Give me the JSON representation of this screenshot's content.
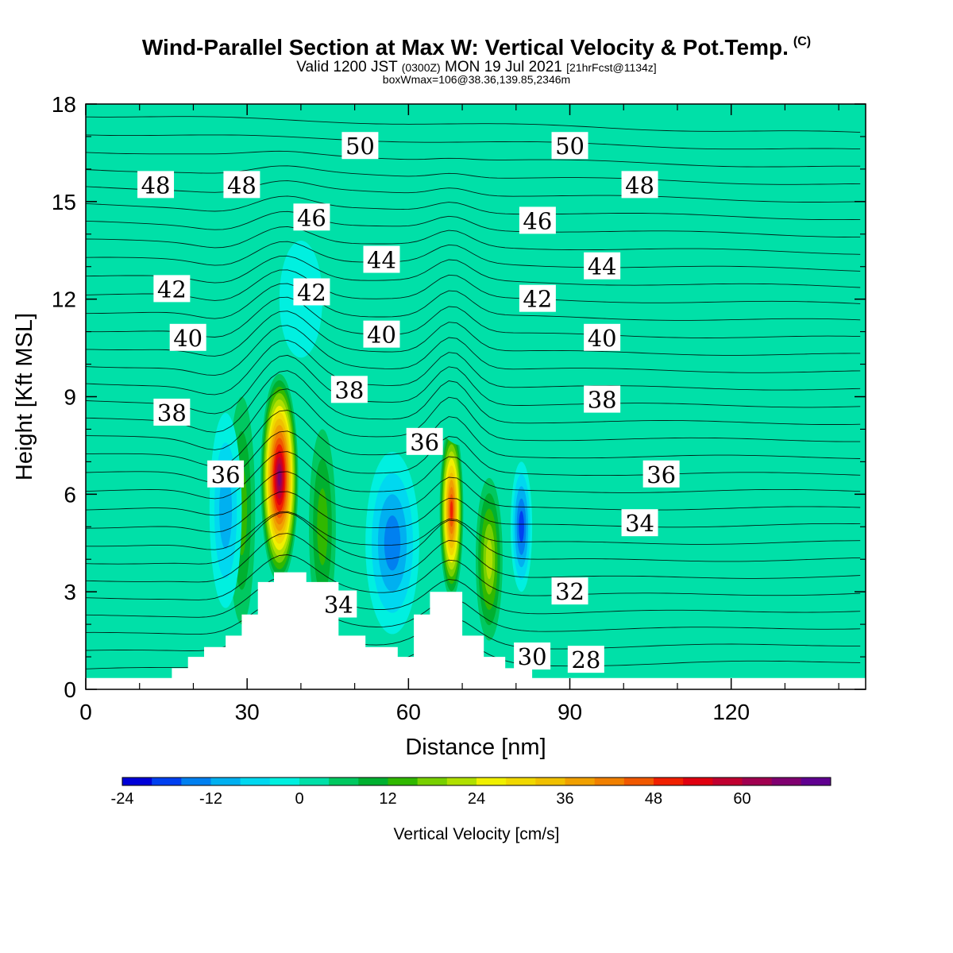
{
  "header": {
    "title": "Wind-Parallel Section at Max W: Vertical Velocity & Pot.Temp.",
    "title_mark": "(C)",
    "valid_prefix": "Valid 1200 JST",
    "valid_utc": "(0300Z)",
    "valid_date": "MON 19 Jul 2021",
    "forecast": "[21hrFcst@1134z]",
    "boxwmax": "boxWmax=106@38.36,139.85,2346m"
  },
  "chart_data": {
    "type": "heatmap",
    "xlabel": "Distance [nm]",
    "ylabel": "Height [Kft MSL]",
    "xlim": [
      0,
      145
    ],
    "ylim": [
      0,
      18
    ],
    "x_ticks": [
      "0",
      "30",
      "60",
      "90",
      "120"
    ],
    "y_ticks": [
      "0",
      "3",
      "6",
      "9",
      "12",
      "15",
      "18"
    ],
    "background_color": "#00e0a8",
    "colorbar": {
      "label": "Vertical Velocity [cm/s]",
      "tick_labels": [
        "-24",
        "-12",
        "0",
        "12",
        "24",
        "36",
        "48",
        "60"
      ],
      "levels": [
        -24,
        -20,
        -16,
        -12,
        -8,
        -4,
        0,
        4,
        8,
        12,
        16,
        20,
        24,
        28,
        32,
        36,
        40,
        44,
        48,
        52,
        56,
        60,
        64,
        68
      ],
      "colors": [
        "#0000d8",
        "#0040f0",
        "#0080f0",
        "#00b0f0",
        "#00d8f0",
        "#00f0e0",
        "#00e0a8",
        "#00c860",
        "#00b030",
        "#30b800",
        "#78d000",
        "#b0e000",
        "#f0f000",
        "#f0d800",
        "#f0c000",
        "#f0a000",
        "#f08000",
        "#f05800",
        "#f02000",
        "#e00010",
        "#c00030",
        "#a00050",
        "#800070",
        "#600090"
      ]
    },
    "velocity_features": [
      {
        "x": 36,
        "y": 6.5,
        "rx": 3.5,
        "ry": 3.2,
        "value": 66
      },
      {
        "x": 68,
        "y": 5.5,
        "rx": 2.2,
        "ry": 2.7,
        "value": 50
      },
      {
        "x": 29,
        "y": 5.5,
        "rx": 2.5,
        "ry": 3.5,
        "value": 14
      },
      {
        "x": 44,
        "y": 5.0,
        "rx": 2.5,
        "ry": 3.0,
        "value": 12
      },
      {
        "x": 75,
        "y": 4.0,
        "rx": 2.5,
        "ry": 2.5,
        "value": 20
      },
      {
        "x": 57,
        "y": 4.5,
        "rx": 5.0,
        "ry": 2.8,
        "value": -16
      },
      {
        "x": 26,
        "y": 5.5,
        "rx": 3.0,
        "ry": 3.0,
        "value": -14
      },
      {
        "x": 81,
        "y": 5.0,
        "rx": 2.0,
        "ry": 2.0,
        "value": -20
      },
      {
        "x": 40,
        "y": 12.0,
        "rx": 4.0,
        "ry": 1.8,
        "value": -4
      },
      {
        "x": 18,
        "y": 17.0,
        "rx": 8.0,
        "ry": 1.5,
        "value": 2
      },
      {
        "x": 100,
        "y": 17.0,
        "rx": 6.0,
        "ry": 1.2,
        "value": 2
      },
      {
        "x": 135,
        "y": 16.0,
        "rx": 5.0,
        "ry": 2.0,
        "value": 2
      },
      {
        "x": 70,
        "y": 10.0,
        "rx": 7.0,
        "ry": 2.5,
        "value": 2
      }
    ],
    "theta_isolines": {
      "levels": [
        28,
        30,
        32,
        34,
        36,
        38,
        40,
        42,
        44,
        46,
        48,
        50
      ],
      "labels": [
        {
          "text": "50",
          "x": 51,
          "y": 16.7
        },
        {
          "text": "50",
          "x": 90,
          "y": 16.7
        },
        {
          "text": "48",
          "x": 13,
          "y": 15.5
        },
        {
          "text": "48",
          "x": 29,
          "y": 15.5
        },
        {
          "text": "48",
          "x": 103,
          "y": 15.5
        },
        {
          "text": "46",
          "x": 42,
          "y": 14.5
        },
        {
          "text": "46",
          "x": 84,
          "y": 14.4
        },
        {
          "text": "44",
          "x": 55,
          "y": 13.2
        },
        {
          "text": "44",
          "x": 96,
          "y": 13.0
        },
        {
          "text": "42",
          "x": 16,
          "y": 12.3
        },
        {
          "text": "42",
          "x": 42,
          "y": 12.2
        },
        {
          "text": "42",
          "x": 84,
          "y": 12.0
        },
        {
          "text": "40",
          "x": 19,
          "y": 10.8
        },
        {
          "text": "40",
          "x": 55,
          "y": 10.9
        },
        {
          "text": "40",
          "x": 96,
          "y": 10.8
        },
        {
          "text": "38",
          "x": 16,
          "y": 8.5
        },
        {
          "text": "38",
          "x": 49,
          "y": 9.2
        },
        {
          "text": "38",
          "x": 96,
          "y": 8.9
        },
        {
          "text": "36",
          "x": 26,
          "y": 6.6
        },
        {
          "text": "36",
          "x": 63,
          "y": 7.6
        },
        {
          "text": "36",
          "x": 107,
          "y": 6.6
        },
        {
          "text": "34",
          "x": 103,
          "y": 5.1
        },
        {
          "text": "34",
          "x": 47,
          "y": 2.6
        },
        {
          "text": "32",
          "x": 90,
          "y": 3.0
        },
        {
          "text": "30",
          "x": 83,
          "y": 1.0
        },
        {
          "text": "28",
          "x": 93,
          "y": 0.9
        }
      ]
    },
    "terrain": [
      [
        0,
        0.35
      ],
      [
        16,
        0.35
      ],
      [
        16,
        0.65
      ],
      [
        19,
        0.65
      ],
      [
        19,
        1.0
      ],
      [
        22,
        1.0
      ],
      [
        22,
        1.3
      ],
      [
        26,
        1.3
      ],
      [
        26,
        1.65
      ],
      [
        29,
        1.65
      ],
      [
        29,
        2.3
      ],
      [
        32,
        2.3
      ],
      [
        32,
        3.3
      ],
      [
        35,
        3.3
      ],
      [
        35,
        3.6
      ],
      [
        41,
        3.6
      ],
      [
        41,
        3.3
      ],
      [
        47,
        3.3
      ],
      [
        47,
        1.65
      ],
      [
        52,
        1.65
      ],
      [
        52,
        1.3
      ],
      [
        58,
        1.3
      ],
      [
        58,
        1.0
      ],
      [
        61,
        1.0
      ],
      [
        61,
        2.3
      ],
      [
        64,
        2.3
      ],
      [
        64,
        3.0
      ],
      [
        70,
        3.0
      ],
      [
        70,
        1.65
      ],
      [
        74,
        1.65
      ],
      [
        74,
        1.0
      ],
      [
        78,
        1.0
      ],
      [
        78,
        0.65
      ],
      [
        83,
        0.65
      ],
      [
        83,
        0.35
      ],
      [
        145,
        0.35
      ]
    ]
  }
}
